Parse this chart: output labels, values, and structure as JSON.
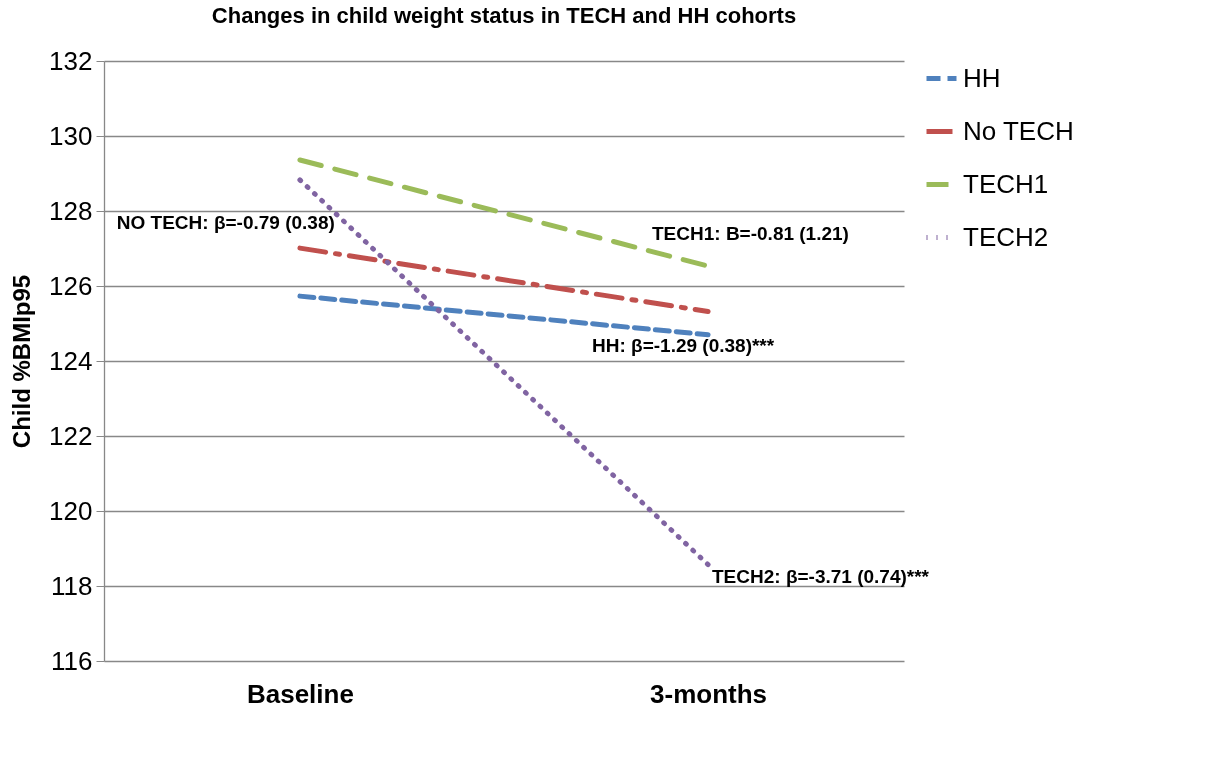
{
  "chart_data": {
    "type": "line",
    "title": "Changes in child weight status in TECH and HH cohorts",
    "ylabel": "Child %BMIp95",
    "categories": [
      "Baseline",
      "3-months"
    ],
    "series": [
      {
        "name": "HH",
        "color": "#4f81bd",
        "values": [
          125.73,
          124.7
        ],
        "line_style": "dashed"
      },
      {
        "name": "No TECH",
        "color": "#c0504d",
        "values": [
          127.01,
          125.32
        ],
        "line_style": "dashed"
      },
      {
        "name": "TECH1",
        "color": "#9bbb59",
        "values": [
          129.36,
          126.53
        ],
        "line_style": "dashed"
      },
      {
        "name": "TECH2",
        "color": "#8064a2",
        "values": [
          128.83,
          118.57
        ],
        "line_style": "dotted"
      }
    ],
    "ylim": [
      116,
      132
    ],
    "yticks": [
      116,
      118,
      120,
      122,
      124,
      126,
      128,
      130,
      132
    ],
    "grid": "y",
    "legend": "right",
    "marker": "none",
    "annotations": [
      "NO TECH: β=-0.79 (0.38)",
      "TECH1: B=-0.81 (1.21)",
      "HH: β=-1.29 (0.38)***",
      "TECH2: β=-3.71 (0.74)***"
    ]
  }
}
